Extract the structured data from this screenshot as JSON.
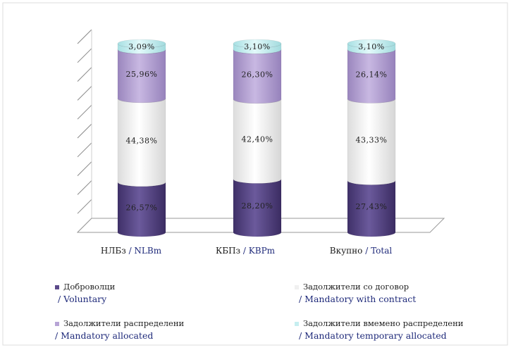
{
  "chart_data": {
    "type": "bar",
    "stacked": true,
    "style": "3d-cylinder",
    "categories": [
      {
        "local": "НЛБз",
        "en": "/ NLBm"
      },
      {
        "local": "КБПз",
        "en": "/ KBPm"
      },
      {
        "local": "Вкупно",
        "en": "/ Total"
      }
    ],
    "series": [
      {
        "name": "Доброволци",
        "name_en": "/ Voluntary",
        "color": "#5b4a8a",
        "values": [
          26.57,
          28.2,
          27.43
        ],
        "labels": [
          "26,57%",
          "28,20%",
          "27,43%"
        ]
      },
      {
        "name": "Задолжители со договор",
        "name_en": "/ Mandatory with contract",
        "color": "#f4f4f4",
        "values": [
          44.38,
          42.4,
          43.33
        ],
        "labels": [
          "44,38%",
          "42,40%",
          "43,33%"
        ]
      },
      {
        "name": "Задолжители распределени",
        "name_en": "/ Mandatory allocated",
        "color": "#b7a4d6",
        "values": [
          25.96,
          26.3,
          26.14
        ],
        "labels": [
          "25,96%",
          "26,30%",
          "26,14%"
        ]
      },
      {
        "name": "Задолжители вмемено распределени",
        "name_en": "/ Mandatory temporary allocated",
        "color": "#c6eef0",
        "values": [
          3.09,
          3.1,
          3.1
        ],
        "labels": [
          "3,09%",
          "3,10%",
          "3,10%"
        ]
      }
    ],
    "ylim": [
      0,
      100
    ],
    "grid": true,
    "legend_position": "bottom"
  }
}
